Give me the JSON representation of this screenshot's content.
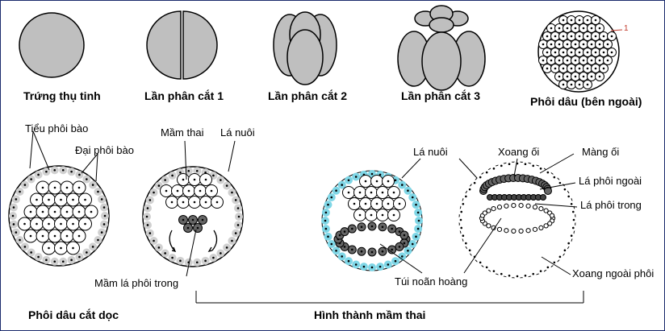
{
  "stages": {
    "zygote": "Trứng thụ tinh",
    "cleavage1": "Lần phân cắt 1",
    "cleavage2": "Lần phân cắt 2",
    "cleavage3": "Lần phân cắt 3",
    "morula_outside": "Phôi dâu (bên ngoài)",
    "morula_marker": "1"
  },
  "labels": {
    "micromeres": "Tiểu phôi bào",
    "macromeres": "Đại phôi bào",
    "embryo_bud": "Mầm thai",
    "trophoblast_1": "Lá nuôi",
    "trophoblast_2": "Lá nuôi",
    "endoderm_bud": "Mầm lá phôi trong",
    "amniotic_cavity": "Xoang ối",
    "amnion": "Màng ối",
    "ectoderm": "Lá phôi ngoài",
    "endoderm": "Lá phôi trong",
    "yolk_sac": "Túi noãn hoàng",
    "extraembryonic_coelom": "Xoang ngoài phôi"
  },
  "captions": {
    "morula_section": "Phôi dâu cắt dọc",
    "embryo_formation": "Hình thành mầm thai"
  },
  "colors": {
    "blastomere": "#bfbfbf",
    "outline": "#000000",
    "cyan_cells": "#7fd6e6",
    "dark_cells": "#666666"
  }
}
